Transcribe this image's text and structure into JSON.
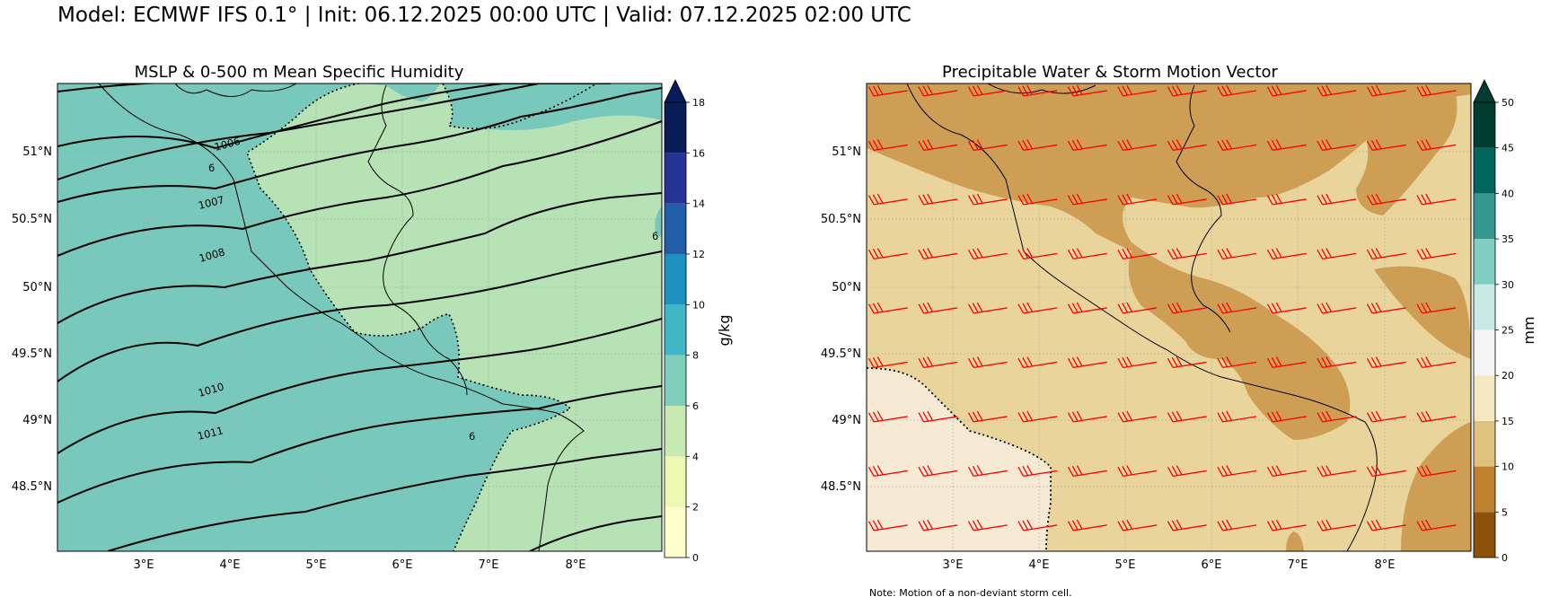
{
  "suptitle": "Model: ECMWF IFS 0.1° | Init: 06.12.2025 00:00 UTC | Valid: 07.12.2025 02:00 UTC",
  "note": "Note: Motion of a non-deviant storm cell.",
  "colors": {
    "humidity_levels": [
      "#ffffcc",
      "#edf8b1",
      "#c7e9b4",
      "#7fcdbb",
      "#41b6c4",
      "#1d91c0",
      "#225ea8",
      "#253494",
      "#081d58"
    ],
    "pw_levels": [
      "#8c510a",
      "#bf812d",
      "#dfc27d",
      "#f6e8c3",
      "#f5f5f5",
      "#c7eae5",
      "#80cdc1",
      "#35978f",
      "#01665e",
      "#003c30"
    ],
    "isobar": "#000000",
    "border": "#000000",
    "storm_vector": "#ff0000"
  },
  "chart_data": [
    {
      "type": "contour",
      "title": "MSLP & 0-500 m Mean Specific Humidity",
      "x_ticks": [
        "3°E",
        "4°E",
        "5°E",
        "6°E",
        "7°E",
        "8°E"
      ],
      "y_ticks": [
        "48.5°N",
        "49°N",
        "49.5°N",
        "50°N",
        "50.5°N",
        "51°N"
      ],
      "xlim": [
        2.0,
        9.0
      ],
      "ylim": [
        48.0,
        51.5
      ],
      "colorbar": {
        "label": "g/kg",
        "levels": [
          0,
          2,
          4,
          6,
          8,
          10,
          12,
          14,
          16,
          18
        ],
        "tick_labels": [
          "0",
          "2",
          "4",
          "6",
          "8",
          "10",
          "12",
          "14",
          "16",
          "18"
        ],
        "extend": "max"
      },
      "isobar_labels": [
        "1006",
        "1007",
        "1008",
        "1010",
        "1011"
      ],
      "humidity_contour_labels": [
        "6",
        "6",
        "6"
      ],
      "regions": [
        {
          "range": "6-8 g/kg",
          "area": "west and north-east"
        },
        {
          "range": "4-6 g/kg",
          "area": "central and east"
        }
      ]
    },
    {
      "type": "contour",
      "title": "Precipitable Water & Storm Motion Vector",
      "x_ticks": [
        "3°E",
        "4°E",
        "5°E",
        "6°E",
        "7°E",
        "8°E"
      ],
      "y_ticks": [
        "48.5°N",
        "49°N",
        "49.5°N",
        "50°N",
        "50.5°N",
        "51°N"
      ],
      "xlim": [
        2.0,
        9.0
      ],
      "ylim": [
        48.0,
        51.5
      ],
      "colorbar": {
        "label": "mm",
        "levels": [
          0,
          5,
          10,
          15,
          20,
          25,
          30,
          35,
          40,
          45,
          50
        ],
        "tick_labels": [
          "0",
          "5",
          "10",
          "15",
          "20",
          "25",
          "30",
          "35",
          "40",
          "45",
          "50"
        ],
        "extend": "max"
      },
      "regions": [
        {
          "range": "10-15 mm",
          "area": "north and central band, south-east corner"
        },
        {
          "range": "15-20 mm",
          "area": "most of domain"
        },
        {
          "range": "20-25 mm",
          "area": "south-west corner"
        }
      ],
      "storm_vector": {
        "direction": "from west-southwest",
        "barb_symbol": "three full barbs"
      }
    }
  ]
}
